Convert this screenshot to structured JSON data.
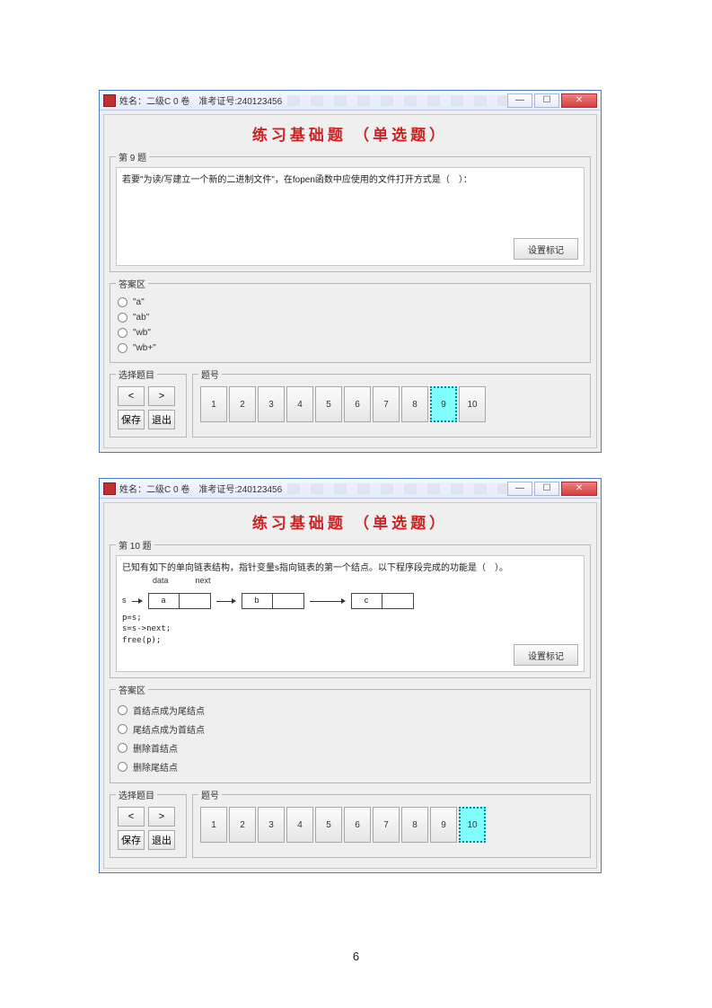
{
  "pageNumber": "6",
  "colors": {
    "windowBorder": "#4a7bc7",
    "titleRed": "#cc2222",
    "activeCyan": "#7fffff",
    "closeRed": "#d04040",
    "panelBg": "#efefef"
  },
  "window1": {
    "titlebar": "姓名：二级C 0 卷　准考证号:240123456",
    "heading": "练习基础题 （单选题）",
    "questionLegend": "第 9 题",
    "questionText": "若要\"为读/写建立一个新的二进制文件\"，在fopen函数中应使用的文件打开方式是（　）：",
    "markBtn": "设置标记",
    "answersLegend": "答案区",
    "answers": [
      "\"a\"",
      "\"ab\"",
      "\"wb\"",
      "\"wb+\""
    ],
    "navLegend": "选择题目",
    "navBtns": [
      "<",
      ">",
      "保存",
      "退出"
    ],
    "qnumLegend": "题号",
    "qnums": [
      "1",
      "2",
      "3",
      "4",
      "5",
      "6",
      "7",
      "8",
      "9",
      "10"
    ],
    "activeIndex": 8
  },
  "window2": {
    "titlebar": "姓名：二级C 0 卷　准考证号:240123456",
    "heading": "练习基础题 （单选题）",
    "questionLegend": "第 10 题",
    "questionText": "已知有如下的单向链表结构，指针变量s指向链表的第一个结点。以下程序段完成的功能是（　）。",
    "llLabels": {
      "data": "data",
      "next": "next"
    },
    "ll": {
      "sLabel": "s",
      "nodes": [
        "a",
        "b",
        "c"
      ]
    },
    "code": [
      "p=s;",
      "s=s->next;",
      "free(p);"
    ],
    "markBtn": "设置标记",
    "answersLegend": "答案区",
    "answers": [
      "首结点成为尾结点",
      "尾结点成为首结点",
      "删除首结点",
      "删除尾结点"
    ],
    "navLegend": "选择题目",
    "navBtns": [
      "<",
      ">",
      "保存",
      "退出"
    ],
    "qnumLegend": "题号",
    "qnums": [
      "1",
      "2",
      "3",
      "4",
      "5",
      "6",
      "7",
      "8",
      "9",
      "10"
    ],
    "activeIndex": 9
  }
}
